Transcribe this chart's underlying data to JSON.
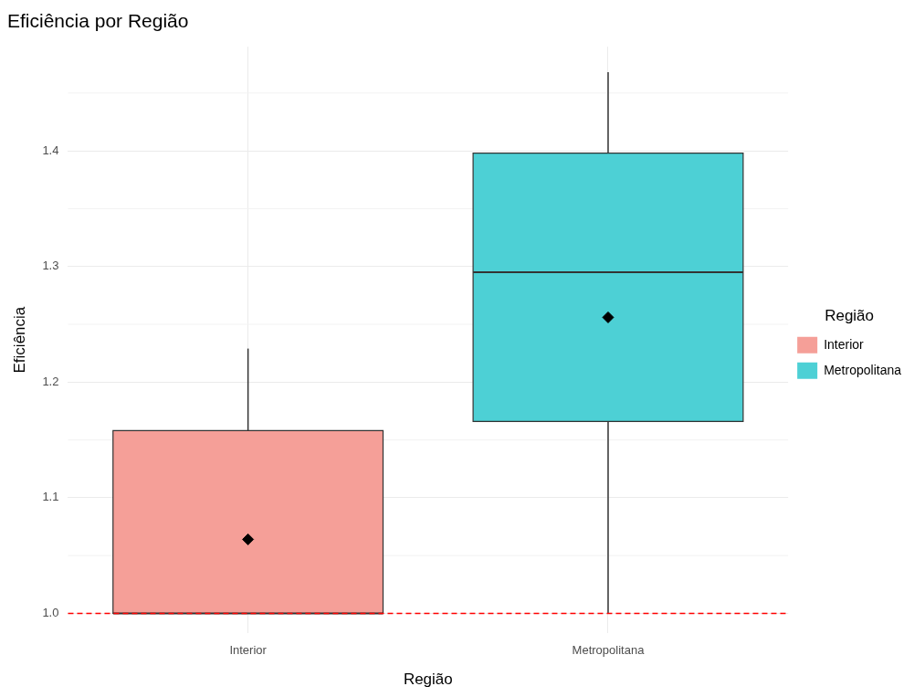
{
  "chart_data": {
    "type": "box",
    "title": "Eficiência por Região",
    "xlabel": "Região",
    "ylabel": "Eficiência",
    "legend_title": "Região",
    "categories": [
      "Interior",
      "Metropolitana"
    ],
    "series": [
      {
        "name": "Interior",
        "color": "#f59f98",
        "boxes": [
          {
            "low": 1.0,
            "q1": 1.0,
            "median": 1.0,
            "q3": 1.158,
            "high": 1.229,
            "mean": 1.064
          },
          null
        ]
      },
      {
        "name": "Metropolitana",
        "color": "#4dd0d5",
        "boxes": [
          null,
          {
            "low": 1.0,
            "q1": 1.166,
            "median": 1.295,
            "q3": 1.398,
            "high": 1.468,
            "mean": 1.256
          }
        ]
      }
    ],
    "ylim": [
      0.983,
      1.49
    ],
    "yticks": [
      {
        "value": 1.0,
        "label": "1.0"
      },
      {
        "value": 1.1,
        "label": "1.1"
      },
      {
        "value": 1.2,
        "label": "1.2"
      },
      {
        "value": 1.3,
        "label": "1.3"
      },
      {
        "value": 1.4,
        "label": "1.4"
      }
    ],
    "ref_lines": [
      {
        "axis": "y",
        "value": 1.0,
        "color": "#ff0000",
        "line_style": "dashed"
      }
    ],
    "grid": true,
    "legend": "right",
    "marker": "diamond"
  }
}
